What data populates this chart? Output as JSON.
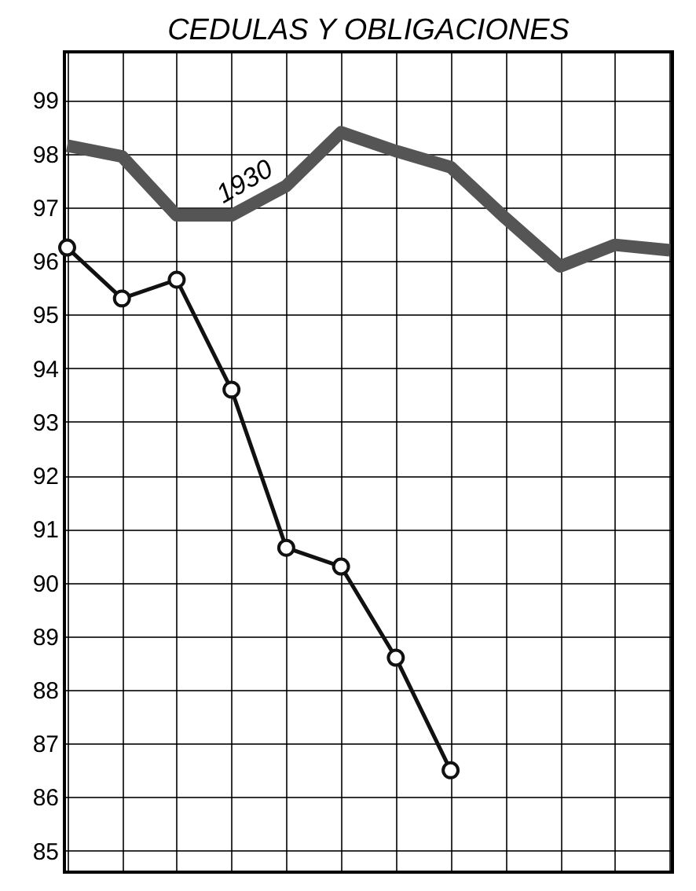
{
  "chart_data": {
    "type": "line",
    "title": "CEDULAS Y OBLIGACIONES",
    "categories": [
      null,
      null,
      null,
      null,
      null,
      null,
      null,
      null,
      null,
      null,
      null,
      null
    ],
    "series": [
      {
        "name": "1930",
        "color": "#555555",
        "values": [
          98.15,
          97.95,
          96.85,
          96.85,
          97.4,
          98.4,
          98.05,
          97.75,
          96.8,
          95.9,
          96.3,
          96.2
        ],
        "marker": "none"
      },
      {
        "color": "#111111",
        "values": [
          96.25,
          95.3,
          95.65,
          93.6,
          90.65,
          90.3,
          88.6,
          86.5,
          null,
          null,
          null,
          null
        ],
        "marker": "circle"
      }
    ],
    "ylim": [
      84.6,
      99.9
    ],
    "yticks": [
      85,
      86,
      87,
      88,
      89,
      90,
      91,
      92,
      93,
      94,
      95,
      96,
      97,
      98,
      99
    ],
    "grid": true,
    "tick_labels": "y",
    "line_style": "solid"
  }
}
